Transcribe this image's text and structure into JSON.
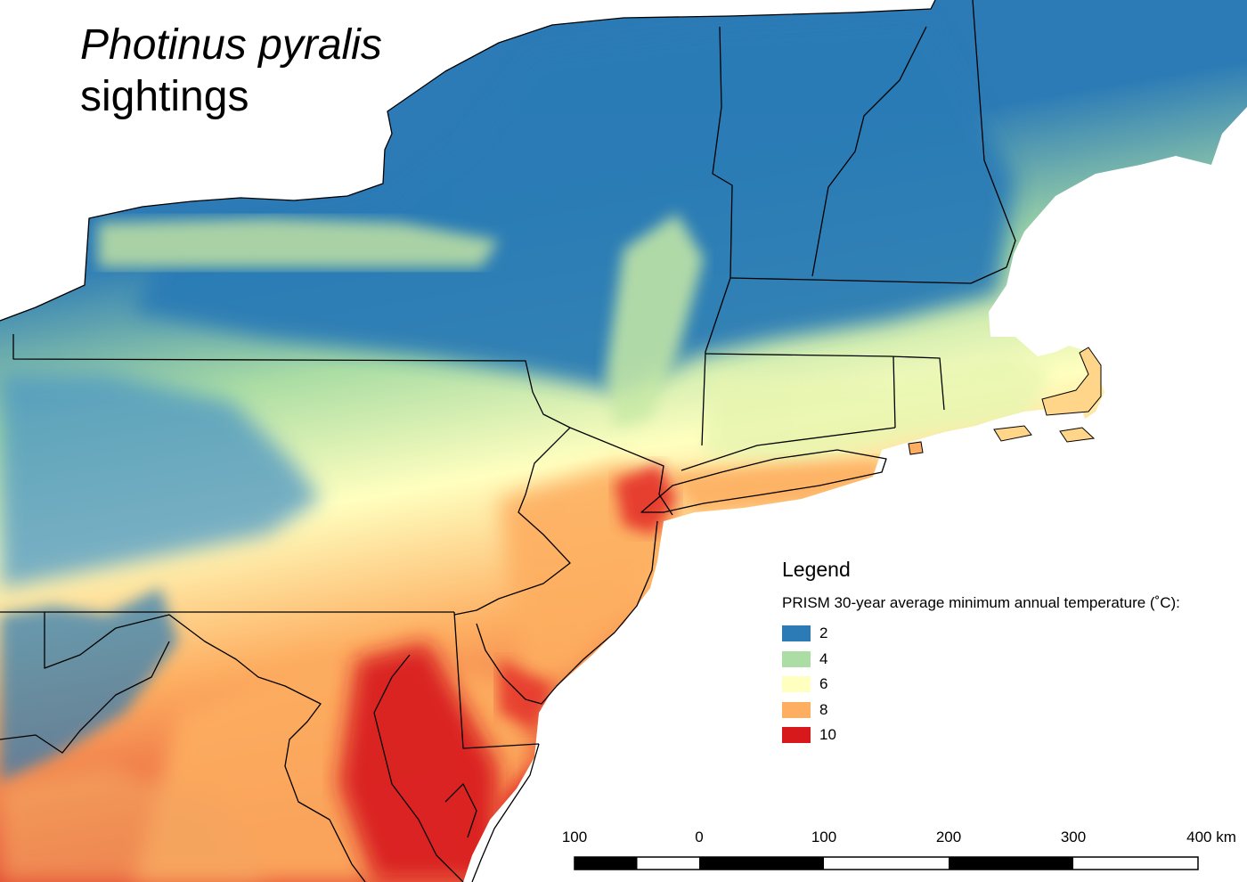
{
  "title": {
    "species": "Photinus pyralis",
    "subtitle": "sightings"
  },
  "legend": {
    "heading": "Legend",
    "description": "PRISM 30-year average minimum annual temperature (˚C):",
    "classes": [
      {
        "label": "2",
        "color": "#2c7bb6"
      },
      {
        "label": "4",
        "color": "#abdda4"
      },
      {
        "label": "6",
        "color": "#ffffbf"
      },
      {
        "label": "8",
        "color": "#fdae61"
      },
      {
        "label": "10",
        "color": "#d7191c"
      }
    ]
  },
  "scale_bar": {
    "ticks": [
      "100",
      "0",
      "100",
      "200",
      "300",
      "400 km"
    ]
  }
}
